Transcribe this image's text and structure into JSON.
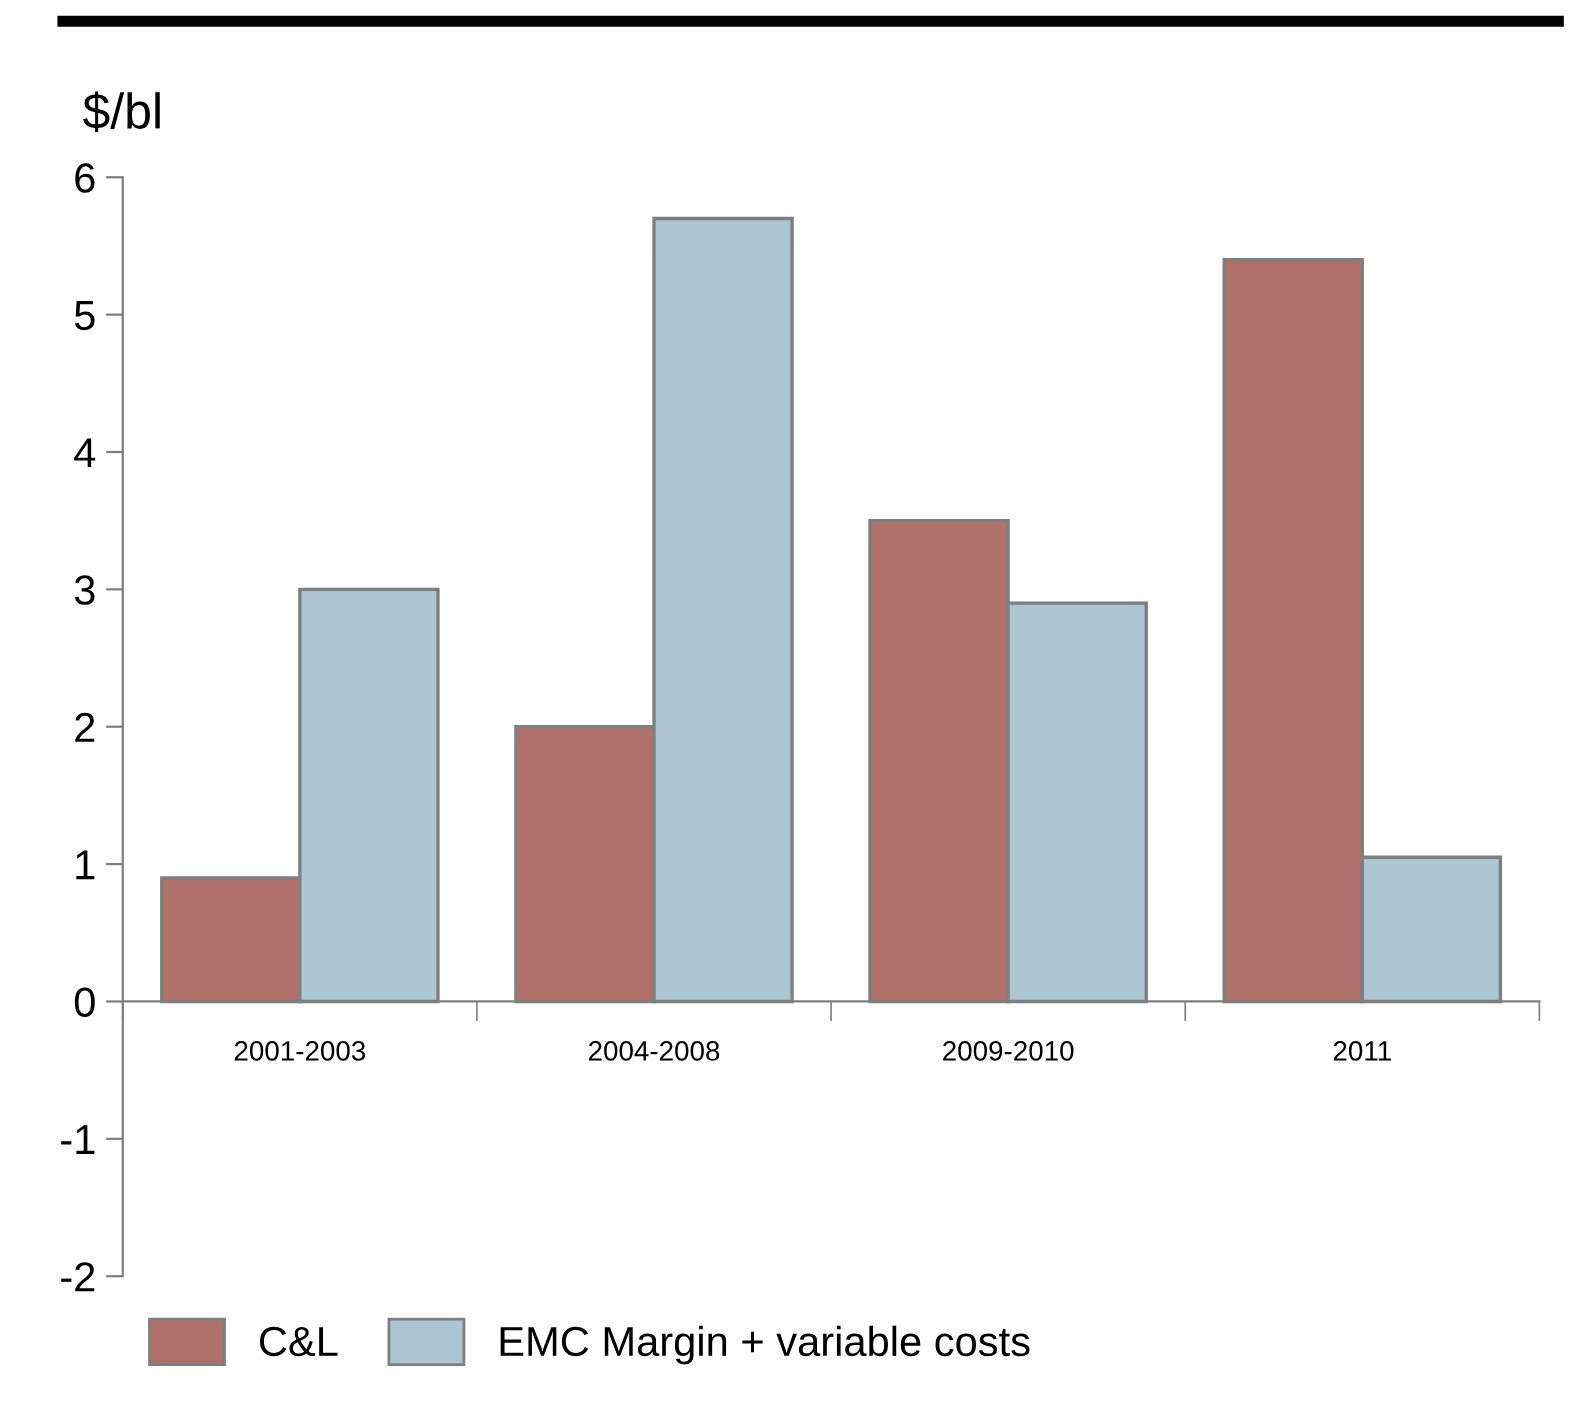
{
  "chart_data": {
    "type": "bar",
    "ylabel": "$/bl",
    "categories": [
      "2001-2003",
      "2004-2008",
      "2009-2010",
      "2011"
    ],
    "series": [
      {
        "name": "C&L",
        "color": "#b0716a",
        "values": [
          0.9,
          2.0,
          3.5,
          5.4
        ]
      },
      {
        "name": "EMC Margin + variable costs",
        "color": "#abc6d0",
        "values": [
          3.0,
          5.7,
          2.9,
          1.05
        ]
      }
    ],
    "ylim": [
      -2,
      6
    ],
    "yticks": [
      -2,
      -1,
      0,
      1,
      2,
      3,
      4,
      5,
      6
    ],
    "grid": false,
    "legend": "bottom"
  }
}
